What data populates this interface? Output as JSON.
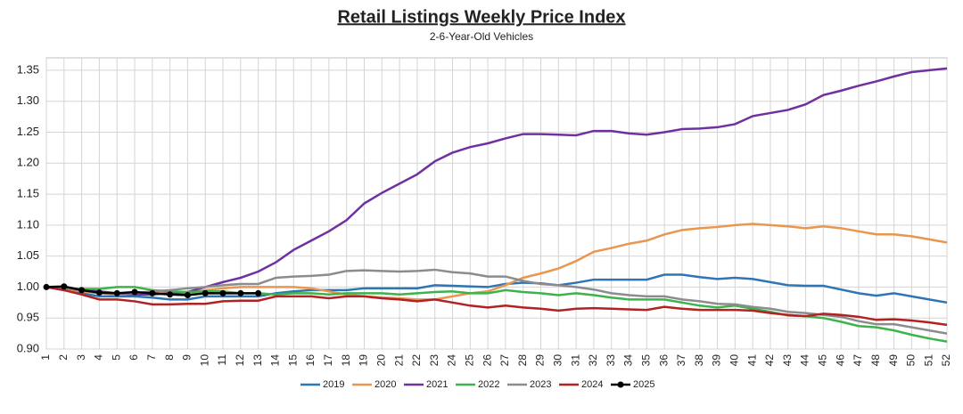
{
  "chart_data": {
    "type": "line",
    "title": "Retail Listings Weekly Price Index",
    "subtitle": "2-6-Year-Old Vehicles",
    "x": [
      1,
      2,
      3,
      4,
      5,
      6,
      7,
      8,
      9,
      10,
      11,
      12,
      13,
      14,
      15,
      16,
      17,
      18,
      19,
      20,
      21,
      22,
      23,
      24,
      25,
      26,
      27,
      28,
      29,
      30,
      31,
      32,
      33,
      34,
      35,
      36,
      37,
      38,
      39,
      40,
      41,
      42,
      43,
      44,
      45,
      46,
      47,
      48,
      49,
      50,
      51,
      52
    ],
    "xlim": [
      1,
      52
    ],
    "xticks": [
      1,
      2,
      3,
      4,
      5,
      6,
      7,
      8,
      9,
      10,
      11,
      12,
      13,
      14,
      15,
      16,
      17,
      18,
      19,
      20,
      21,
      22,
      23,
      24,
      25,
      26,
      27,
      28,
      29,
      30,
      31,
      32,
      33,
      34,
      35,
      36,
      37,
      38,
      39,
      40,
      41,
      42,
      43,
      44,
      45,
      46,
      47,
      48,
      49,
      50,
      51,
      52
    ],
    "ylim": [
      0.9,
      1.37
    ],
    "yticks": [
      {
        "value": 0.9,
        "label": "0.90"
      },
      {
        "value": 0.95,
        "label": "0.95"
      },
      {
        "value": 1.0,
        "label": "1.00"
      },
      {
        "value": 1.05,
        "label": "1.05"
      },
      {
        "value": 1.1,
        "label": "1.10"
      },
      {
        "value": 1.15,
        "label": "1.15"
      },
      {
        "value": 1.2,
        "label": "1.20"
      },
      {
        "value": 1.25,
        "label": "1.25"
      },
      {
        "value": 1.3,
        "label": "1.30"
      },
      {
        "value": 1.35,
        "label": "1.35"
      }
    ],
    "grid": true,
    "legend": "bottom",
    "series": [
      {
        "name": "2019",
        "color": "#2e75b6",
        "values": [
          1.0,
          0.995,
          0.99,
          0.985,
          0.985,
          0.985,
          0.983,
          0.98,
          0.98,
          0.985,
          0.985,
          0.985,
          0.985,
          0.99,
          0.993,
          0.995,
          0.995,
          0.995,
          0.998,
          0.998,
          0.998,
          0.998,
          1.003,
          1.002,
          1.001,
          1.0,
          1.005,
          1.007,
          1.006,
          1.003,
          1.007,
          1.012,
          1.012,
          1.012,
          1.012,
          1.02,
          1.02,
          1.016,
          1.013,
          1.015,
          1.013,
          1.008,
          1.003,
          1.002,
          1.002,
          0.996,
          0.99,
          0.986,
          0.99,
          0.985,
          0.98,
          0.975
        ]
      },
      {
        "name": "2020",
        "color": "#e9964e",
        "values": [
          1.0,
          0.997,
          0.993,
          0.99,
          0.988,
          0.99,
          0.99,
          0.99,
          0.99,
          0.995,
          0.998,
          1.0,
          1.0,
          1.0,
          1.0,
          0.998,
          0.993,
          0.988,
          0.985,
          0.983,
          0.982,
          0.98,
          0.98,
          0.985,
          0.99,
          0.993,
          1.003,
          1.015,
          1.022,
          1.03,
          1.042,
          1.057,
          1.063,
          1.07,
          1.075,
          1.085,
          1.092,
          1.095,
          1.097,
          1.1,
          1.102,
          1.1,
          1.098,
          1.095,
          1.098,
          1.095,
          1.09,
          1.085,
          1.085,
          1.082,
          1.077,
          1.072
        ]
      },
      {
        "name": "2021",
        "color": "#7030a0",
        "values": [
          1.0,
          0.998,
          0.995,
          0.993,
          0.99,
          0.988,
          0.988,
          0.99,
          0.992,
          1.0,
          1.008,
          1.015,
          1.025,
          1.04,
          1.06,
          1.075,
          1.09,
          1.108,
          1.135,
          1.152,
          1.167,
          1.182,
          1.203,
          1.217,
          1.226,
          1.232,
          1.24,
          1.247,
          1.247,
          1.246,
          1.245,
          1.252,
          1.252,
          1.248,
          1.246,
          1.25,
          1.255,
          1.256,
          1.258,
          1.263,
          1.276,
          1.281,
          1.286,
          1.295,
          1.31,
          1.317,
          1.325,
          1.332,
          1.34,
          1.347,
          1.35,
          1.353
        ]
      },
      {
        "name": "2022",
        "color": "#3cb44b",
        "values": [
          1.0,
          0.998,
          0.997,
          0.997,
          1.0,
          1.0,
          0.995,
          0.993,
          0.992,
          0.993,
          0.993,
          0.99,
          0.99,
          0.988,
          0.99,
          0.99,
          0.988,
          0.99,
          0.99,
          0.99,
          0.988,
          0.99,
          0.992,
          0.993,
          0.99,
          0.99,
          0.995,
          0.992,
          0.99,
          0.987,
          0.99,
          0.987,
          0.983,
          0.98,
          0.98,
          0.98,
          0.975,
          0.97,
          0.967,
          0.97,
          0.965,
          0.96,
          0.954,
          0.953,
          0.95,
          0.944,
          0.937,
          0.935,
          0.93,
          0.923,
          0.917,
          0.912
        ]
      },
      {
        "name": "2023",
        "color": "#8c8c8c",
        "values": [
          1.0,
          0.998,
          0.995,
          0.99,
          0.99,
          0.99,
          0.993,
          0.995,
          0.998,
          1.0,
          1.003,
          1.005,
          1.005,
          1.015,
          1.017,
          1.018,
          1.02,
          1.026,
          1.027,
          1.026,
          1.025,
          1.026,
          1.028,
          1.024,
          1.022,
          1.017,
          1.017,
          1.01,
          1.005,
          1.003,
          1.0,
          0.996,
          0.99,
          0.987,
          0.985,
          0.985,
          0.98,
          0.977,
          0.973,
          0.972,
          0.968,
          0.965,
          0.96,
          0.958,
          0.955,
          0.952,
          0.945,
          0.94,
          0.94,
          0.935,
          0.93,
          0.925
        ]
      },
      {
        "name": "2024",
        "color": "#b22222",
        "values": [
          1.0,
          0.995,
          0.988,
          0.98,
          0.98,
          0.977,
          0.972,
          0.972,
          0.973,
          0.973,
          0.977,
          0.978,
          0.978,
          0.985,
          0.985,
          0.985,
          0.982,
          0.985,
          0.985,
          0.982,
          0.98,
          0.977,
          0.98,
          0.975,
          0.97,
          0.967,
          0.97,
          0.967,
          0.965,
          0.962,
          0.965,
          0.966,
          0.965,
          0.964,
          0.963,
          0.968,
          0.965,
          0.963,
          0.963,
          0.963,
          0.962,
          0.958,
          0.955,
          0.953,
          0.957,
          0.955,
          0.952,
          0.947,
          0.948,
          0.946,
          0.943,
          0.939
        ]
      },
      {
        "name": "2025",
        "color": "#000000",
        "marker": true,
        "values": [
          1.0,
          1.001,
          0.995,
          0.991,
          0.99,
          0.992,
          0.99,
          0.988,
          0.987,
          0.99,
          0.99,
          0.99,
          0.99,
          null,
          null,
          null,
          null,
          null,
          null,
          null,
          null,
          null,
          null,
          null,
          null,
          null,
          null,
          null,
          null,
          null,
          null,
          null,
          null,
          null,
          null,
          null,
          null,
          null,
          null,
          null,
          null,
          null,
          null,
          null,
          null,
          null,
          null,
          null,
          null,
          null,
          null,
          null
        ]
      }
    ]
  }
}
